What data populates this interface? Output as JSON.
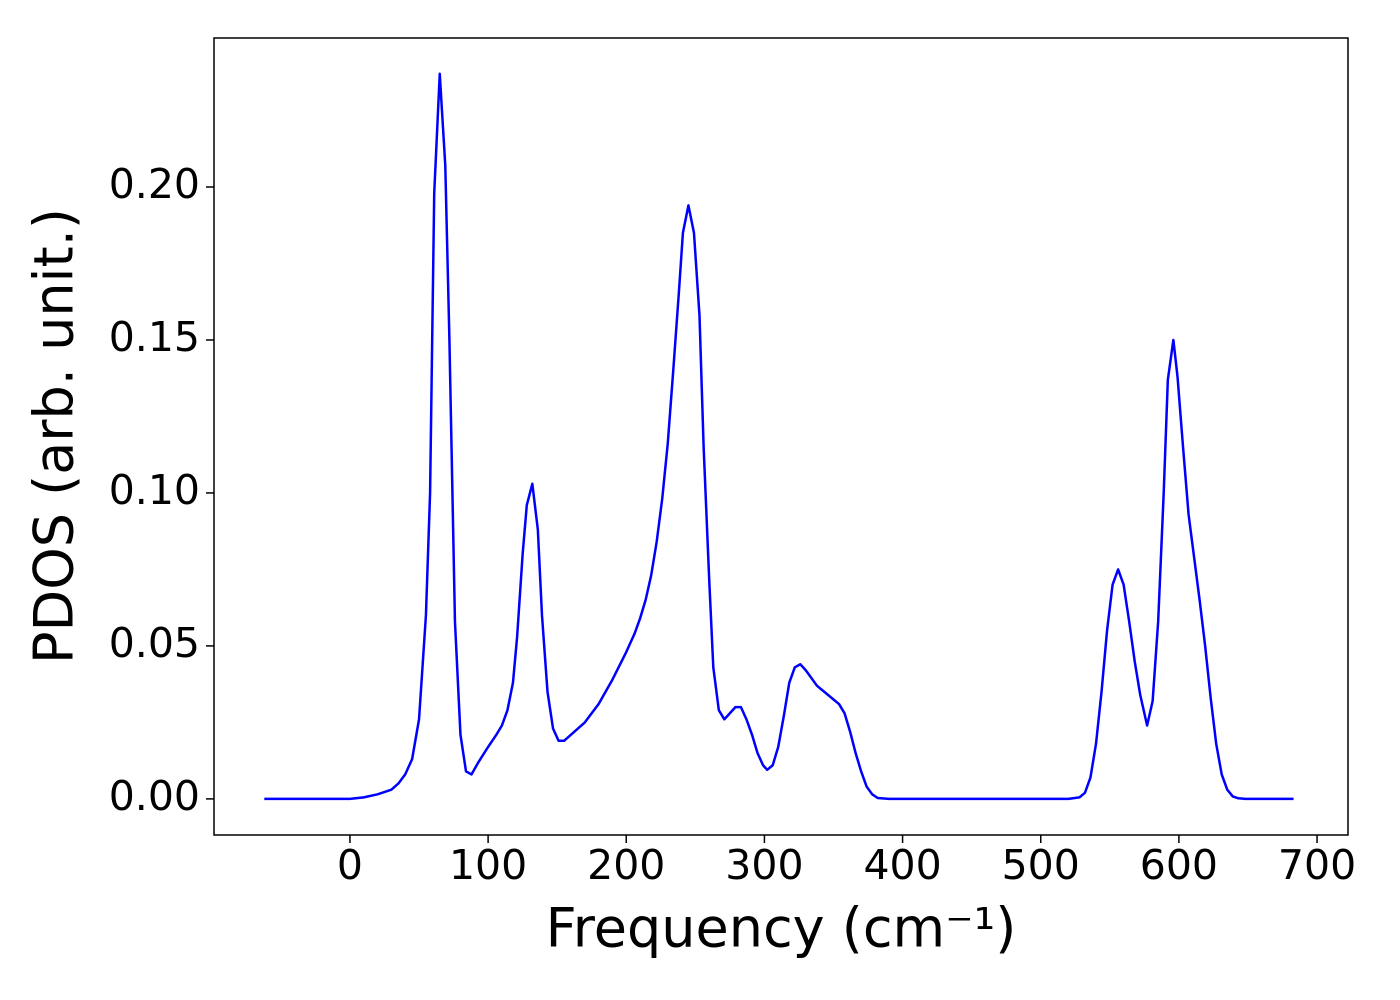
{
  "chart_data": {
    "type": "line",
    "xlabel": "Frequency (cm⁻¹)",
    "ylabel": "PDOS (arb. unit.)",
    "color": "#0000ff",
    "x": [
      -62,
      0,
      10,
      20,
      30,
      35,
      40,
      45,
      50,
      55,
      58,
      61,
      65,
      69,
      72,
      76,
      80,
      84,
      88,
      93,
      100,
      106,
      110,
      114,
      118,
      121,
      125,
      128,
      132,
      136,
      139,
      143,
      147,
      151,
      155,
      160,
      170,
      180,
      190,
      200,
      206,
      210,
      214,
      218,
      222,
      226,
      230,
      234,
      238,
      241,
      245,
      249,
      253,
      256,
      260,
      263,
      267,
      271,
      275,
      279,
      283,
      287,
      291,
      295,
      299,
      302,
      306,
      310,
      314,
      318,
      322,
      326,
      330,
      338,
      346,
      354,
      358,
      362,
      366,
      370,
      374,
      378,
      382,
      390,
      520,
      528,
      532,
      536,
      540,
      544,
      548,
      552,
      556,
      560,
      564,
      568,
      572,
      577,
      581,
      585,
      589,
      592,
      596,
      599,
      603,
      607,
      611,
      615,
      619,
      623,
      627,
      631,
      635,
      639,
      643,
      648,
      683
    ],
    "values": [
      0,
      0,
      0.0005,
      0.0015,
      0.003,
      0.005,
      0.008,
      0.013,
      0.026,
      0.06,
      0.1,
      0.198,
      0.237,
      0.207,
      0.15,
      0.058,
      0.021,
      0.009,
      0.008,
      0.012,
      0.017,
      0.021,
      0.024,
      0.029,
      0.038,
      0.053,
      0.08,
      0.096,
      0.103,
      0.088,
      0.06,
      0.035,
      0.023,
      0.019,
      0.019,
      0.021,
      0.025,
      0.031,
      0.039,
      0.048,
      0.054,
      0.059,
      0.065,
      0.073,
      0.084,
      0.098,
      0.116,
      0.14,
      0.165,
      0.185,
      0.194,
      0.185,
      0.158,
      0.115,
      0.072,
      0.043,
      0.029,
      0.026,
      0.028,
      0.03,
      0.03,
      0.026,
      0.021,
      0.015,
      0.011,
      0.0095,
      0.011,
      0.017,
      0.027,
      0.038,
      0.043,
      0.044,
      0.042,
      0.037,
      0.034,
      0.031,
      0.028,
      0.022,
      0.015,
      0.009,
      0.004,
      0.0015,
      0.0003,
      0,
      0,
      0.0005,
      0.002,
      0.007,
      0.018,
      0.035,
      0.055,
      0.07,
      0.075,
      0.07,
      0.058,
      0.045,
      0.034,
      0.024,
      0.032,
      0.058,
      0.1,
      0.137,
      0.15,
      0.138,
      0.115,
      0.093,
      0.079,
      0.065,
      0.05,
      0.033,
      0.018,
      0.008,
      0.003,
      0.0008,
      0.0002,
      0,
      0
    ],
    "xlim": [
      -98.4,
      722.4
    ],
    "xticks": [
      0,
      100,
      200,
      300,
      400,
      500,
      600,
      700
    ],
    "ylim": [
      -0.0118,
      0.2487
    ],
    "yticks": [
      {
        "value": 0,
        "label": "0.00"
      },
      {
        "value": 0.05,
        "label": "0.05"
      },
      {
        "value": 0.1,
        "label": "0.10"
      },
      {
        "value": 0.15,
        "label": "0.15"
      },
      {
        "value": 0.2,
        "label": "0.20"
      }
    ],
    "grid": false
  }
}
